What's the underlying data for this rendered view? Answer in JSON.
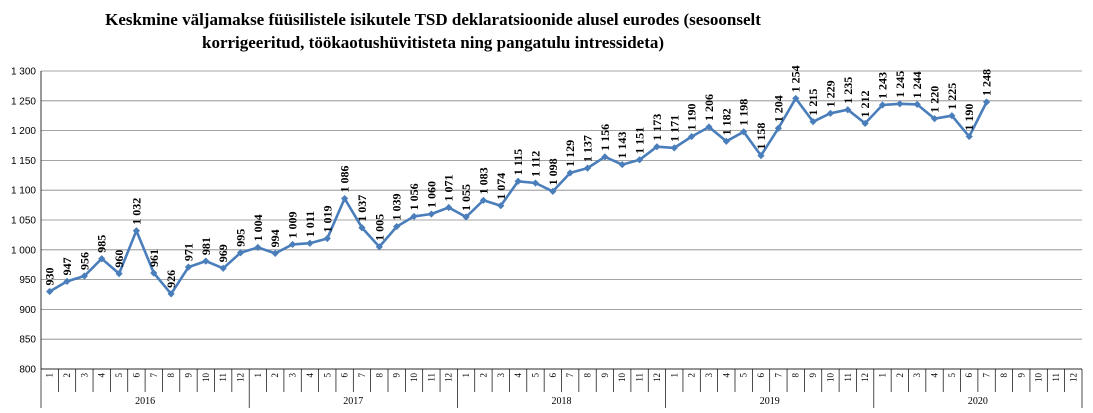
{
  "chart_data": {
    "type": "line",
    "title_lines": [
      "Keskmine väljamakse füüsilistele isikutele TSD deklaratsioonide alusel eurodes (sesoonselt",
      "korrigeeritud, töökaotushüvitisteta ning pangatulu intressideta)"
    ],
    "ylim": [
      800,
      1300
    ],
    "yticks": [
      800,
      850,
      900,
      950,
      1000,
      1050,
      1100,
      1150,
      1200,
      1250,
      1300
    ],
    "ytick_labels": [
      "800",
      "850",
      "900",
      "950",
      "1 000",
      "1 050",
      "1 100",
      "1 150",
      "1 200",
      "1 250",
      "1 300"
    ],
    "grid": true,
    "years": [
      "2016",
      "2017",
      "2018",
      "2019",
      "2020"
    ],
    "months": [
      "1",
      "2",
      "3",
      "4",
      "5",
      "6",
      "7",
      "8",
      "9",
      "10",
      "11",
      "12"
    ],
    "line_color": "#4a7ebb",
    "series": [
      {
        "values": [
          930,
          947,
          956,
          985,
          960,
          1032,
          961,
          926,
          971,
          981,
          969,
          995,
          1004,
          994,
          1009,
          1011,
          1019,
          1086,
          1037,
          1005,
          1039,
          1056,
          1060,
          1071,
          1055,
          1083,
          1074,
          1115,
          1112,
          1098,
          1129,
          1137,
          1156,
          1143,
          1151,
          1173,
          1171,
          1190,
          1206,
          1182,
          1198,
          1158,
          1204,
          1254,
          1215,
          1229,
          1235,
          1212,
          1243,
          1245,
          1244,
          1220,
          1225,
          1190,
          1248
        ],
        "labels": [
          "930",
          "947",
          "956",
          "985",
          "960",
          "1 032",
          "961",
          "926",
          "971",
          "981",
          "969",
          "995",
          "1 004",
          "994",
          "1 009",
          "1 011",
          "1 019",
          "1 086",
          "1 037",
          "1 005",
          "1 039",
          "1 056",
          "1 060",
          "1 071",
          "1 055",
          "1 083",
          "1 074",
          "1 115",
          "1 112",
          "1 098",
          "1 129",
          "1 137",
          "1 156",
          "1 143",
          "1 151",
          "1 173",
          "1 171",
          "1 190",
          "1 206",
          "1 182",
          "1 198",
          "1 158",
          "1 204",
          "1 254",
          "1 215",
          "1 229",
          "1 235",
          "1 212",
          "1 243",
          "1 245",
          "1 244",
          "1 220",
          "1 225",
          "1 190",
          "1 248"
        ]
      }
    ]
  }
}
